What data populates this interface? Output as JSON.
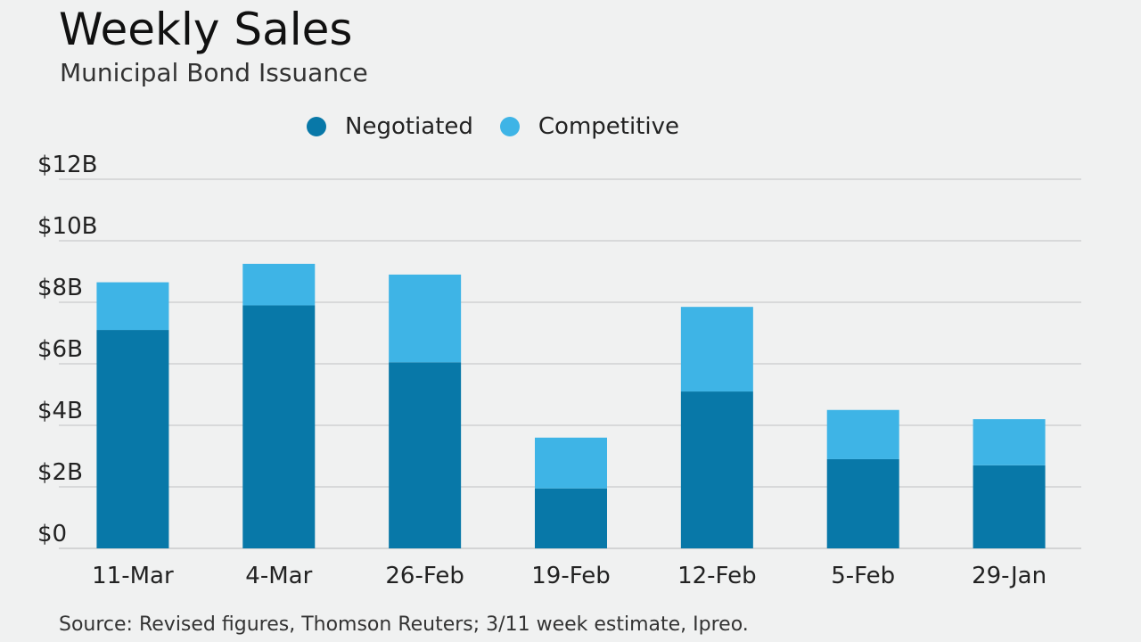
{
  "title": "Weekly Sales",
  "subtitle": "Municipal Bond Issuance",
  "source": "Source: Revised figures, Thomson Reuters; 3/11 week estimate, Ipreo.",
  "colors": {
    "negotiated": "#0878a8",
    "competitive": "#3eb4e6",
    "gridline": "#c9cbcc",
    "background": "#f0f1f1"
  },
  "chart_data": {
    "type": "bar",
    "stacked": true,
    "categories": [
      "11-Mar",
      "4-Mar",
      "26-Feb",
      "19-Feb",
      "12-Feb",
      "5-Feb",
      "29-Jan"
    ],
    "series": [
      {
        "name": "Negotiated",
        "color": "#0878a8",
        "values": [
          7.1,
          7.9,
          6.05,
          1.95,
          5.1,
          2.9,
          2.7
        ]
      },
      {
        "name": "Competitive",
        "color": "#3eb4e6",
        "values": [
          1.55,
          1.35,
          2.85,
          1.65,
          2.75,
          1.6,
          1.5
        ]
      }
    ],
    "ylim": [
      0,
      12
    ],
    "yticks": [
      0,
      2,
      4,
      6,
      8,
      10,
      12
    ],
    "ytick_labels": [
      "$0",
      "$2B",
      "$4B",
      "$6B",
      "$8B",
      "$10B",
      "$12B"
    ],
    "xlabel": "",
    "ylabel": "",
    "grid": true,
    "legend_position": "top"
  }
}
